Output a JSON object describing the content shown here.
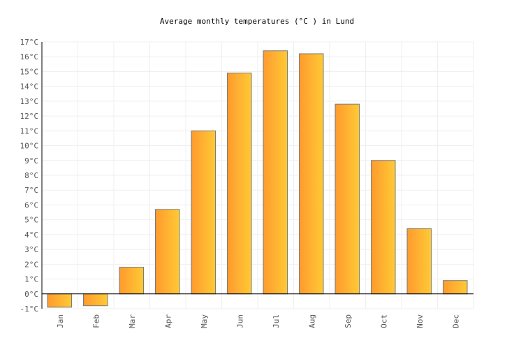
{
  "chart_data": {
    "type": "bar",
    "title": "Average monthly temperatures (°C ) in Lund",
    "xlabel": "",
    "ylabel": "",
    "categories": [
      "Jan",
      "Feb",
      "Mar",
      "Apr",
      "May",
      "Jun",
      "Jul",
      "Aug",
      "Sep",
      "Oct",
      "Nov",
      "Dec"
    ],
    "values": [
      -0.9,
      -0.8,
      1.8,
      5.7,
      11.0,
      14.9,
      16.4,
      16.2,
      12.8,
      9.0,
      4.4,
      0.9
    ],
    "ylim": [
      -1,
      17
    ],
    "ytick_step": 1,
    "ytick_suffix": "°C",
    "grid": true,
    "legend": "none",
    "colors": {
      "bar_start": "#ff9a2e",
      "bar_end": "#ffca35",
      "bar_stroke": "#7a7a7a",
      "grid": "#efefef",
      "axis": "#000000"
    }
  }
}
